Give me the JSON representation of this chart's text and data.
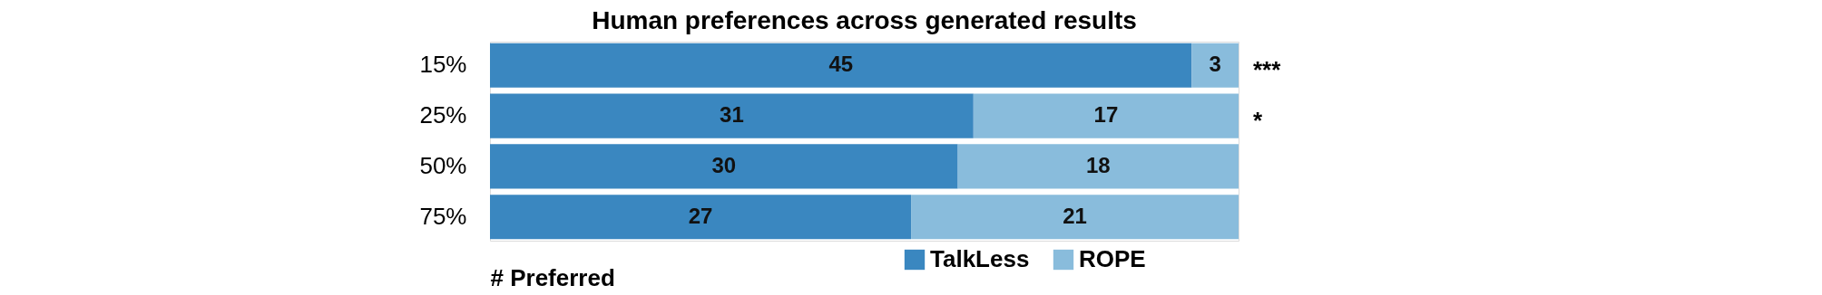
{
  "chart_data": {
    "type": "bar",
    "orientation": "horizontal",
    "stacked": true,
    "title": "Human preferences across generated results",
    "xlabel": "# Preferred",
    "categories": [
      "15%",
      "25%",
      "50%",
      "75%"
    ],
    "series": [
      {
        "name": "TalkLess",
        "color": "#3a87c0",
        "values": [
          45,
          31,
          30,
          27
        ]
      },
      {
        "name": "ROPE",
        "color": "#89bcdc",
        "values": [
          3,
          17,
          18,
          21
        ]
      }
    ],
    "data_labels": true,
    "legend": "bottom right",
    "annotations": [
      {
        "text": "***",
        "x": 48,
        "y": "15%"
      },
      {
        "text": "*",
        "x": 48,
        "y": "25%"
      }
    ]
  }
}
